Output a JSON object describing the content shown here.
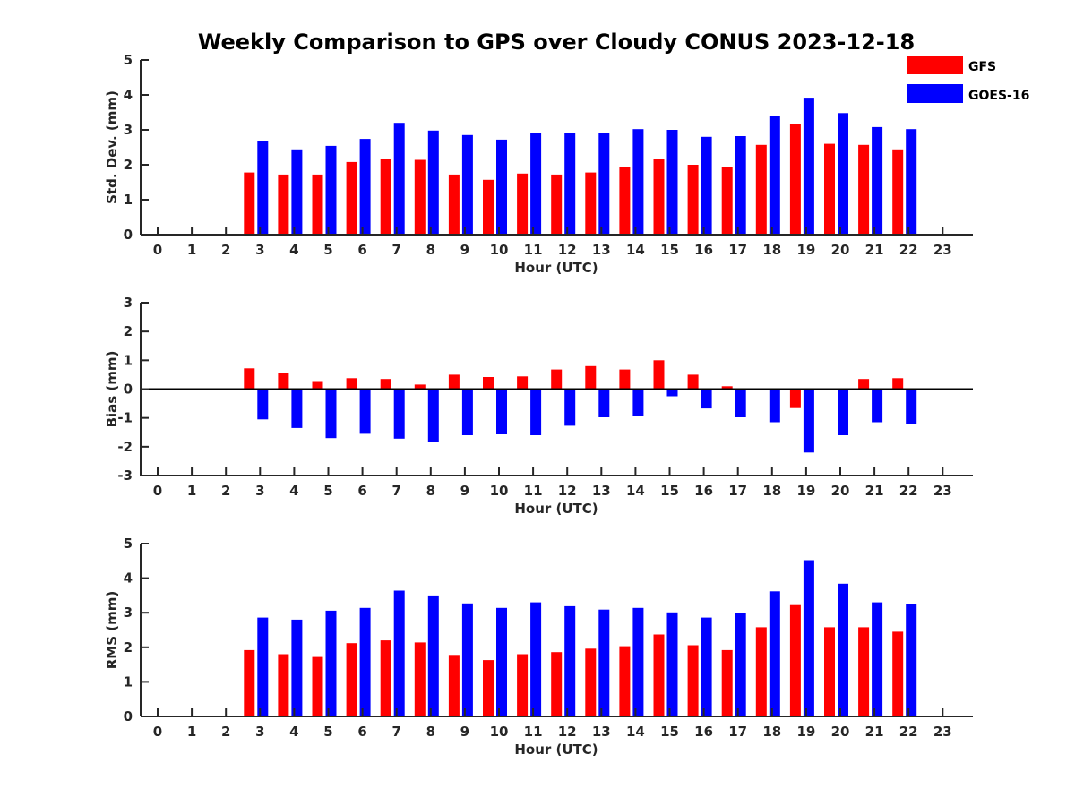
{
  "title": "Weekly Comparison to GPS over Cloudy CONUS 2023-12-18",
  "legend": [
    {
      "name": "GFS",
      "color": "#ff0000"
    },
    {
      "name": "GOES-16",
      "color": "#0000ff"
    }
  ],
  "chart_data": [
    {
      "type": "bar",
      "xlabel": "Hour (UTC)",
      "ylabel": "Std. Dev. (mm)",
      "ylim": [
        0,
        5
      ],
      "yticks": [
        0,
        1,
        2,
        3,
        4,
        5
      ],
      "categories": [
        0,
        1,
        2,
        3,
        4,
        5,
        6,
        7,
        8,
        9,
        10,
        11,
        12,
        13,
        14,
        15,
        16,
        17,
        18,
        19,
        20,
        21,
        22,
        23
      ],
      "series": [
        {
          "name": "GFS",
          "color": "#ff0000",
          "values": [
            null,
            null,
            null,
            1.78,
            1.72,
            1.72,
            2.08,
            2.16,
            2.14,
            1.72,
            1.57,
            1.75,
            1.72,
            1.78,
            1.93,
            2.16,
            2.0,
            1.93,
            2.57,
            3.16,
            2.6,
            2.57,
            2.44,
            null
          ]
        },
        {
          "name": "GOES-16",
          "color": "#0000ff",
          "values": [
            null,
            null,
            null,
            2.67,
            2.44,
            2.54,
            2.74,
            3.2,
            2.98,
            2.85,
            2.72,
            2.9,
            2.92,
            2.92,
            3.02,
            3.0,
            2.8,
            2.82,
            3.41,
            3.92,
            3.48,
            3.08,
            3.02,
            null
          ]
        }
      ]
    },
    {
      "type": "bar",
      "xlabel": "Hour (UTC)",
      "ylabel": "Bias (mm)",
      "ylim": [
        -3,
        3
      ],
      "yticks": [
        -3,
        -2,
        -1,
        0,
        1,
        2,
        3
      ],
      "categories": [
        0,
        1,
        2,
        3,
        4,
        5,
        6,
        7,
        8,
        9,
        10,
        11,
        12,
        13,
        14,
        15,
        16,
        17,
        18,
        19,
        20,
        21,
        22,
        23
      ],
      "series": [
        {
          "name": "GFS",
          "color": "#ff0000",
          "values": [
            null,
            null,
            null,
            0.72,
            0.57,
            0.28,
            0.38,
            0.35,
            0.16,
            0.5,
            0.42,
            0.44,
            0.68,
            0.8,
            0.68,
            1.0,
            0.5,
            0.1,
            0.03,
            -0.66,
            -0.04,
            0.35,
            0.38,
            null
          ]
        },
        {
          "name": "GOES-16",
          "color": "#0000ff",
          "values": [
            null,
            null,
            null,
            -1.05,
            -1.35,
            -1.7,
            -1.55,
            -1.72,
            -1.85,
            -1.6,
            -1.57,
            -1.6,
            -1.27,
            -0.98,
            -0.93,
            -0.25,
            -0.67,
            -0.98,
            -1.15,
            -2.2,
            -1.6,
            -1.15,
            -1.2,
            null
          ]
        }
      ]
    },
    {
      "type": "bar",
      "xlabel": "Hour (UTC)",
      "ylabel": "RMS (mm)",
      "ylim": [
        0,
        5
      ],
      "yticks": [
        0,
        1,
        2,
        3,
        4,
        5
      ],
      "categories": [
        0,
        1,
        2,
        3,
        4,
        5,
        6,
        7,
        8,
        9,
        10,
        11,
        12,
        13,
        14,
        15,
        16,
        17,
        18,
        19,
        20,
        21,
        22,
        23
      ],
      "series": [
        {
          "name": "GFS",
          "color": "#ff0000",
          "values": [
            null,
            null,
            null,
            1.92,
            1.8,
            1.72,
            2.12,
            2.2,
            2.14,
            1.78,
            1.63,
            1.8,
            1.86,
            1.96,
            2.03,
            2.37,
            2.06,
            1.92,
            2.58,
            3.22,
            2.58,
            2.58,
            2.45,
            null
          ]
        },
        {
          "name": "GOES-16",
          "color": "#0000ff",
          "values": [
            null,
            null,
            null,
            2.86,
            2.8,
            3.06,
            3.14,
            3.64,
            3.5,
            3.27,
            3.14,
            3.3,
            3.19,
            3.09,
            3.14,
            3.01,
            2.86,
            2.99,
            3.62,
            4.52,
            3.84,
            3.3,
            3.24,
            null
          ]
        }
      ]
    }
  ]
}
